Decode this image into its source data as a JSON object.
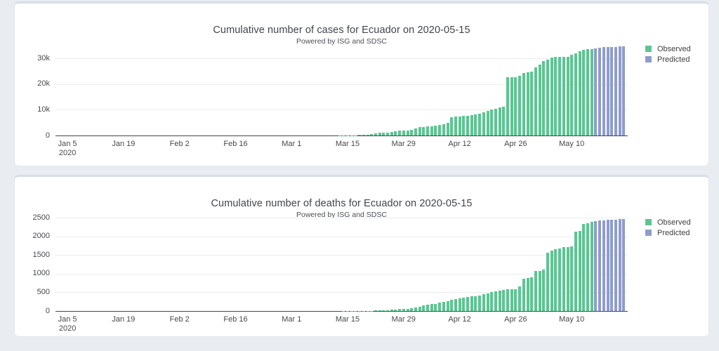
{
  "page": {
    "background": "#e9edf2",
    "card_background": "#ffffff"
  },
  "colors": {
    "observed": "#5ec492",
    "predicted": "#8f9ccb",
    "axis_line": "#44474c",
    "gridline": "#e9ebee",
    "text": "#41454d"
  },
  "chart_data": [
    {
      "type": "bar",
      "title": "Cumulative number of cases for Ecuador on 2020-05-15",
      "subtitle": "Powered by ISG and SDSC",
      "xlabel": "",
      "ylabel": "",
      "ylim": [
        0,
        36000
      ],
      "x_range": [
        "2020-01-02",
        "2020-05-24"
      ],
      "grid": "horizontal",
      "legend_position": "right-top",
      "yticks": [
        {
          "value": 0,
          "label": "0"
        },
        {
          "value": 10000,
          "label": "10k"
        },
        {
          "value": 20000,
          "label": "20k"
        },
        {
          "value": 30000,
          "label": "30k"
        }
      ],
      "xticks": [
        {
          "date": "2020-01-05",
          "label": "Jan 5",
          "sublabel": "2020"
        },
        {
          "date": "2020-01-19",
          "label": "Jan 19"
        },
        {
          "date": "2020-02-02",
          "label": "Feb 2"
        },
        {
          "date": "2020-02-16",
          "label": "Feb 16"
        },
        {
          "date": "2020-03-01",
          "label": "Mar 1"
        },
        {
          "date": "2020-03-15",
          "label": "Mar 15"
        },
        {
          "date": "2020-03-29",
          "label": "Mar 29"
        },
        {
          "date": "2020-04-12",
          "label": "Apr 12"
        },
        {
          "date": "2020-04-26",
          "label": "Apr 26"
        },
        {
          "date": "2020-05-10",
          "label": "May 10"
        }
      ],
      "legend": [
        {
          "name": "Observed",
          "color": "#5ec492"
        },
        {
          "name": "Predicted",
          "color": "#8f9ccb"
        }
      ],
      "series": [
        {
          "name": "Observed",
          "color": "#5ec492",
          "points": [
            [
              "2020-02-29",
              1
            ],
            [
              "2020-03-01",
              6
            ],
            [
              "2020-03-02",
              7
            ],
            [
              "2020-03-03",
              7
            ],
            [
              "2020-03-04",
              10
            ],
            [
              "2020-03-05",
              13
            ],
            [
              "2020-03-06",
              13
            ],
            [
              "2020-03-07",
              14
            ],
            [
              "2020-03-08",
              14
            ],
            [
              "2020-03-09",
              15
            ],
            [
              "2020-03-10",
              15
            ],
            [
              "2020-03-11",
              17
            ],
            [
              "2020-03-12",
              17
            ],
            [
              "2020-03-13",
              23
            ],
            [
              "2020-03-14",
              28
            ],
            [
              "2020-03-15",
              37
            ],
            [
              "2020-03-16",
              58
            ],
            [
              "2020-03-17",
              111
            ],
            [
              "2020-03-18",
              168
            ],
            [
              "2020-03-19",
              260
            ],
            [
              "2020-03-20",
              367
            ],
            [
              "2020-03-21",
              506
            ],
            [
              "2020-03-22",
              789
            ],
            [
              "2020-03-23",
              981
            ],
            [
              "2020-03-24",
              1082
            ],
            [
              "2020-03-25",
              1173
            ],
            [
              "2020-03-26",
              1403
            ],
            [
              "2020-03-27",
              1595
            ],
            [
              "2020-03-28",
              1823
            ],
            [
              "2020-03-29",
              1924
            ],
            [
              "2020-03-30",
              1962
            ],
            [
              "2020-03-31",
              2240
            ],
            [
              "2020-04-01",
              2748
            ],
            [
              "2020-04-02",
              3163
            ],
            [
              "2020-04-03",
              3368
            ],
            [
              "2020-04-04",
              3465
            ],
            [
              "2020-04-05",
              3646
            ],
            [
              "2020-04-06",
              3747
            ],
            [
              "2020-04-07",
              3995
            ],
            [
              "2020-04-08",
              4450
            ],
            [
              "2020-04-09",
              4965
            ],
            [
              "2020-04-10",
              7161
            ],
            [
              "2020-04-11",
              7257
            ],
            [
              "2020-04-12",
              7466
            ],
            [
              "2020-04-13",
              7529
            ],
            [
              "2020-04-14",
              7603
            ],
            [
              "2020-04-15",
              7858
            ],
            [
              "2020-04-16",
              8225
            ],
            [
              "2020-04-17",
              8450
            ],
            [
              "2020-04-18",
              9022
            ],
            [
              "2020-04-19",
              9468
            ],
            [
              "2020-04-20",
              10128
            ],
            [
              "2020-04-21",
              10398
            ],
            [
              "2020-04-22",
              10850
            ],
            [
              "2020-04-23",
              11183
            ],
            [
              "2020-04-24",
              22719
            ],
            [
              "2020-04-25",
              22719
            ],
            [
              "2020-04-26",
              22719
            ],
            [
              "2020-04-27",
              23240
            ],
            [
              "2020-04-28",
              24258
            ],
            [
              "2020-04-29",
              24675
            ],
            [
              "2020-04-30",
              24934
            ],
            [
              "2020-05-01",
              26336
            ],
            [
              "2020-05-02",
              27464
            ],
            [
              "2020-05-03",
              28818
            ],
            [
              "2020-05-04",
              29420
            ],
            [
              "2020-05-05",
              30298
            ],
            [
              "2020-05-06",
              30419
            ],
            [
              "2020-05-07",
              30486
            ],
            [
              "2020-05-08",
              30502
            ],
            [
              "2020-05-09",
              30619
            ],
            [
              "2020-05-10",
              31467
            ],
            [
              "2020-05-11",
              31881
            ],
            [
              "2020-05-12",
              32723
            ],
            [
              "2020-05-13",
              33182
            ],
            [
              "2020-05-14",
              33459
            ],
            [
              "2020-05-15",
              33582
            ]
          ]
        },
        {
          "name": "Predicted",
          "color": "#8f9ccb",
          "points": [
            [
              "2020-05-16",
              33900
            ],
            [
              "2020-05-17",
              34100
            ],
            [
              "2020-05-18",
              34250
            ],
            [
              "2020-05-19",
              34350
            ],
            [
              "2020-05-20",
              34420
            ],
            [
              "2020-05-21",
              34470
            ],
            [
              "2020-05-22",
              34510
            ],
            [
              "2020-05-23",
              34540
            ]
          ]
        }
      ]
    },
    {
      "type": "bar",
      "title": "Cumulative number of deaths for Ecuador on 2020-05-15",
      "subtitle": "Powered by ISG and SDSC",
      "xlabel": "",
      "ylabel": "",
      "ylim": [
        0,
        2575
      ],
      "x_range": [
        "2020-01-02",
        "2020-05-24"
      ],
      "grid": "horizontal",
      "legend_position": "right-top",
      "yticks": [
        {
          "value": 0,
          "label": "0"
        },
        {
          "value": 500,
          "label": "500"
        },
        {
          "value": 1000,
          "label": "1000"
        },
        {
          "value": 1500,
          "label": "1500"
        },
        {
          "value": 2000,
          "label": "2000"
        },
        {
          "value": 2500,
          "label": "2500"
        }
      ],
      "xticks": [
        {
          "date": "2020-01-05",
          "label": "Jan 5",
          "sublabel": "2020"
        },
        {
          "date": "2020-01-19",
          "label": "Jan 19"
        },
        {
          "date": "2020-02-02",
          "label": "Feb 2"
        },
        {
          "date": "2020-02-16",
          "label": "Feb 16"
        },
        {
          "date": "2020-03-01",
          "label": "Mar 1"
        },
        {
          "date": "2020-03-15",
          "label": "Mar 15"
        },
        {
          "date": "2020-03-29",
          "label": "Mar 29"
        },
        {
          "date": "2020-04-12",
          "label": "Apr 12"
        },
        {
          "date": "2020-04-26",
          "label": "Apr 26"
        },
        {
          "date": "2020-05-10",
          "label": "May 10"
        }
      ],
      "legend": [
        {
          "name": "Observed",
          "color": "#5ec492"
        },
        {
          "name": "Predicted",
          "color": "#8f9ccb"
        }
      ],
      "series": [
        {
          "name": "Observed",
          "color": "#5ec492",
          "points": [
            [
              "2020-03-13",
              1
            ],
            [
              "2020-03-14",
              2
            ],
            [
              "2020-03-15",
              2
            ],
            [
              "2020-03-16",
              2
            ],
            [
              "2020-03-17",
              2
            ],
            [
              "2020-03-18",
              3
            ],
            [
              "2020-03-19",
              4
            ],
            [
              "2020-03-20",
              5
            ],
            [
              "2020-03-21",
              7
            ],
            [
              "2020-03-22",
              14
            ],
            [
              "2020-03-23",
              18
            ],
            [
              "2020-03-24",
              27
            ],
            [
              "2020-03-25",
              28
            ],
            [
              "2020-03-26",
              34
            ],
            [
              "2020-03-27",
              36
            ],
            [
              "2020-03-28",
              48
            ],
            [
              "2020-03-29",
              58
            ],
            [
              "2020-03-30",
              60
            ],
            [
              "2020-03-31",
              75
            ],
            [
              "2020-04-01",
              93
            ],
            [
              "2020-04-02",
              120
            ],
            [
              "2020-04-03",
              145
            ],
            [
              "2020-04-04",
              172
            ],
            [
              "2020-04-05",
              180
            ],
            [
              "2020-04-06",
              191
            ],
            [
              "2020-04-07",
              220
            ],
            [
              "2020-04-08",
              242
            ],
            [
              "2020-04-09",
              272
            ],
            [
              "2020-04-10",
              297
            ],
            [
              "2020-04-11",
              315
            ],
            [
              "2020-04-12",
              333
            ],
            [
              "2020-04-13",
              355
            ],
            [
              "2020-04-14",
              369
            ],
            [
              "2020-04-15",
              388
            ],
            [
              "2020-04-16",
              403
            ],
            [
              "2020-04-17",
              421
            ],
            [
              "2020-04-18",
              456
            ],
            [
              "2020-04-19",
              474
            ],
            [
              "2020-04-20",
              507
            ],
            [
              "2020-04-21",
              520
            ],
            [
              "2020-04-22",
              537
            ],
            [
              "2020-04-23",
              560
            ],
            [
              "2020-04-24",
              576
            ],
            [
              "2020-04-25",
              576
            ],
            [
              "2020-04-26",
              576
            ],
            [
              "2020-04-27",
              663
            ],
            [
              "2020-04-28",
              871
            ],
            [
              "2020-04-29",
              883
            ],
            [
              "2020-04-30",
              900
            ],
            [
              "2020-05-01",
              1063
            ],
            [
              "2020-05-02",
              1063
            ],
            [
              "2020-05-03",
              1100
            ],
            [
              "2020-05-04",
              1569
            ],
            [
              "2020-05-05",
              1618
            ],
            [
              "2020-05-06",
              1654
            ],
            [
              "2020-05-07",
              1669
            ],
            [
              "2020-05-08",
              1704
            ],
            [
              "2020-05-09",
              1717
            ],
            [
              "2020-05-10",
              1724
            ],
            [
              "2020-05-11",
              2127
            ],
            [
              "2020-05-12",
              2145
            ],
            [
              "2020-05-13",
              2338
            ],
            [
              "2020-05-14",
              2347
            ],
            [
              "2020-05-15",
              2394
            ]
          ]
        },
        {
          "name": "Predicted",
          "color": "#8f9ccb",
          "points": [
            [
              "2020-05-16",
              2410
            ],
            [
              "2020-05-17",
              2424
            ],
            [
              "2020-05-18",
              2434
            ],
            [
              "2020-05-19",
              2441
            ],
            [
              "2020-05-20",
              2447
            ],
            [
              "2020-05-21",
              2451
            ],
            [
              "2020-05-22",
              2454
            ],
            [
              "2020-05-23",
              2456
            ]
          ]
        }
      ]
    }
  ]
}
